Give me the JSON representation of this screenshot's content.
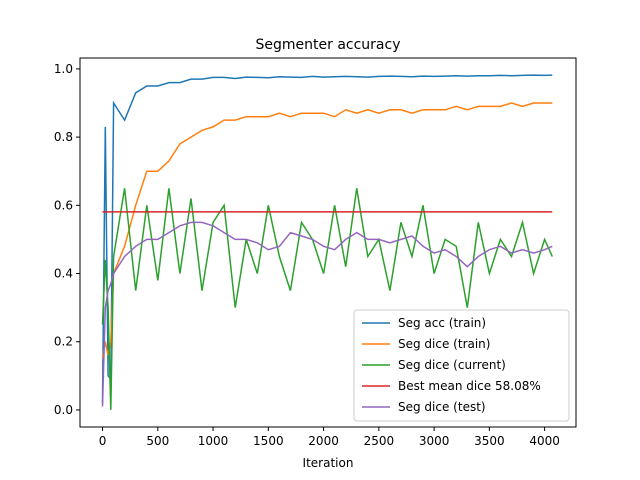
{
  "chart_data": {
    "type": "line",
    "title": "Segmenter accuracy",
    "x_label": "Iteration",
    "x": [
      0,
      25,
      50,
      75,
      100,
      200,
      300,
      400,
      500,
      600,
      700,
      800,
      900,
      1000,
      1100,
      1200,
      1300,
      1400,
      1500,
      1600,
      1700,
      1800,
      1900,
      2000,
      2100,
      2200,
      2300,
      2400,
      2500,
      2600,
      2700,
      2800,
      2900,
      3000,
      3100,
      3200,
      3300,
      3400,
      3500,
      3600,
      3700,
      3800,
      3900,
      4000,
      4070
    ],
    "series": [
      {
        "name": "Seg acc (train)",
        "color": "#1f77b4",
        "values": [
          0.02,
          0.83,
          0.1,
          0.09,
          0.9,
          0.85,
          0.93,
          0.95,
          0.95,
          0.96,
          0.96,
          0.97,
          0.97,
          0.975,
          0.975,
          0.972,
          0.976,
          0.975,
          0.974,
          0.977,
          0.976,
          0.975,
          0.978,
          0.976,
          0.977,
          0.978,
          0.977,
          0.976,
          0.978,
          0.979,
          0.978,
          0.977,
          0.979,
          0.978,
          0.979,
          0.98,
          0.979,
          0.98,
          0.98,
          0.981,
          0.98,
          0.981,
          0.982,
          0.981,
          0.982
        ]
      },
      {
        "name": "Seg dice (train)",
        "color": "#ff7f0e",
        "values": [
          0.15,
          0.2,
          0.16,
          0.2,
          0.4,
          0.48,
          0.6,
          0.7,
          0.7,
          0.73,
          0.78,
          0.8,
          0.82,
          0.83,
          0.85,
          0.85,
          0.86,
          0.86,
          0.86,
          0.87,
          0.86,
          0.87,
          0.87,
          0.87,
          0.86,
          0.88,
          0.87,
          0.88,
          0.87,
          0.88,
          0.88,
          0.87,
          0.88,
          0.88,
          0.88,
          0.89,
          0.88,
          0.89,
          0.89,
          0.89,
          0.9,
          0.89,
          0.9,
          0.9,
          0.9
        ]
      },
      {
        "name": "Seg dice (current)",
        "color": "#2ca02c",
        "values": [
          0.25,
          0.44,
          0.3,
          0.0,
          0.45,
          0.65,
          0.35,
          0.6,
          0.38,
          0.65,
          0.4,
          0.62,
          0.35,
          0.55,
          0.6,
          0.3,
          0.5,
          0.4,
          0.6,
          0.45,
          0.35,
          0.55,
          0.5,
          0.4,
          0.6,
          0.42,
          0.65,
          0.45,
          0.5,
          0.35,
          0.55,
          0.45,
          0.6,
          0.4,
          0.5,
          0.48,
          0.3,
          0.55,
          0.4,
          0.5,
          0.45,
          0.55,
          0.4,
          0.5,
          0.45
        ]
      },
      {
        "name": "Best mean dice 58.08%",
        "color": "#d62728",
        "x": [
          0,
          4070
        ],
        "values": [
          0.5808,
          0.5808
        ]
      },
      {
        "name": "Seg dice (test)",
        "color": "#9467bd",
        "values": [
          0.01,
          0.3,
          0.35,
          0.37,
          0.4,
          0.45,
          0.48,
          0.5,
          0.5,
          0.52,
          0.54,
          0.55,
          0.55,
          0.54,
          0.52,
          0.5,
          0.5,
          0.49,
          0.47,
          0.48,
          0.52,
          0.51,
          0.5,
          0.48,
          0.47,
          0.5,
          0.52,
          0.5,
          0.5,
          0.49,
          0.5,
          0.51,
          0.48,
          0.46,
          0.47,
          0.45,
          0.42,
          0.45,
          0.47,
          0.48,
          0.46,
          0.47,
          0.46,
          0.47,
          0.48
        ]
      }
    ],
    "xlim": [
      -204,
      4284
    ],
    "ylim": [
      -0.05,
      1.032
    ],
    "xticks": [
      0,
      500,
      1000,
      1500,
      2000,
      2500,
      3000,
      3500,
      4000
    ],
    "yticks": [
      {
        "value": 0,
        "label": "0.0"
      },
      {
        "value": 0.2,
        "label": "0.2"
      },
      {
        "value": 0.4,
        "label": "0.4"
      },
      {
        "value": 0.6,
        "label": "0.6"
      },
      {
        "value": 0.8,
        "label": "0.8"
      },
      {
        "value": 1,
        "label": "1.0"
      }
    ],
    "legend": "lower right"
  }
}
